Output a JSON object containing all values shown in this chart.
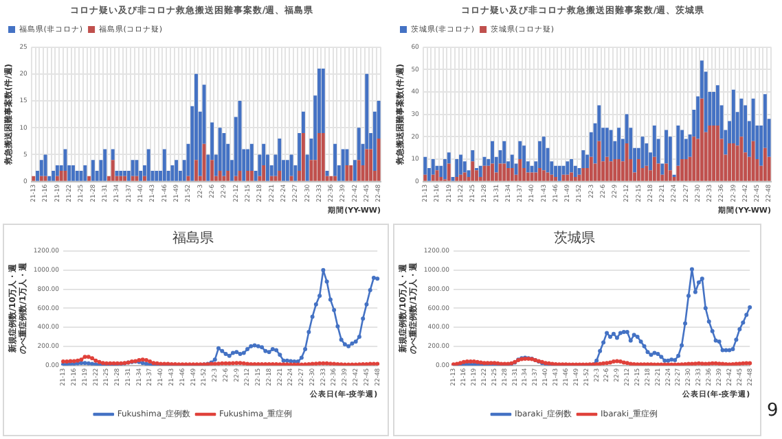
{
  "chart_data": [
    {
      "type": "bar",
      "title": "コロナ疑い及び非コロナ救急搬送困難事案数/週、福島県",
      "xlabel": "期間(YY-WW)",
      "ylabel": "救急搬送困難事案数(件/週)",
      "stacked": true,
      "legend": "top left",
      "grid": true,
      "ylim": [
        0,
        25
      ],
      "yticks": [
        0,
        5,
        10,
        15,
        20,
        25
      ],
      "categories": [
        "21-13",
        null,
        null,
        "21-16",
        null,
        null,
        "21-19",
        null,
        null,
        "21-22",
        null,
        null,
        "21-25",
        null,
        null,
        "21-28",
        null,
        null,
        "21-31",
        null,
        null,
        "21-34",
        null,
        null,
        "21-37",
        null,
        null,
        "21-40",
        null,
        null,
        "21-43",
        null,
        null,
        "21-46",
        null,
        null,
        "21-49",
        null,
        null,
        "21-52",
        null,
        null,
        "22-3",
        null,
        null,
        "22-6",
        null,
        null,
        "22-9",
        null,
        null,
        "22-12",
        null,
        null,
        "22-15",
        null,
        null,
        "22-18",
        null,
        null,
        "22-21",
        null,
        null,
        "22-24",
        null,
        null,
        "22-27",
        null,
        null,
        "22-30",
        null,
        null,
        "22-33",
        null,
        null,
        "22-36",
        null,
        null,
        "22-39",
        null,
        null,
        "22-42",
        null,
        null,
        "22-45",
        null,
        null,
        "22-48"
      ],
      "series": [
        {
          "name": "福島県(コロナ疑)",
          "color": "#c0504d",
          "values": [
            1,
            0,
            1,
            1,
            0,
            0,
            1,
            2,
            2,
            0,
            0,
            0,
            0,
            0,
            1,
            0,
            0,
            0,
            0,
            1,
            4,
            1,
            1,
            1,
            0,
            1,
            1,
            0,
            1,
            0,
            0,
            0,
            0,
            0,
            0,
            0,
            0,
            0,
            0,
            1,
            0,
            4,
            1,
            7,
            0,
            4,
            1,
            2,
            1,
            2,
            0,
            1,
            2,
            0,
            2,
            2,
            0,
            1,
            3,
            0,
            1,
            1,
            2,
            0,
            0,
            1,
            0,
            2,
            9,
            0,
            4,
            4,
            9,
            9,
            1,
            1,
            1,
            0,
            0,
            3,
            3,
            0,
            4,
            3,
            6,
            6,
            2,
            8
          ]
        },
        {
          "name": "福島県(非コロナ)",
          "color": "#4472c4",
          "values": [
            0,
            2,
            3,
            4,
            1,
            2,
            2,
            1,
            4,
            3,
            3,
            2,
            2,
            3,
            0,
            4,
            2,
            4,
            6,
            0,
            2,
            1,
            1,
            1,
            2,
            3,
            3,
            2,
            2,
            6,
            2,
            2,
            2,
            6,
            2,
            3,
            4,
            2,
            4,
            6,
            14,
            16,
            12,
            11,
            5,
            7,
            4,
            8,
            8,
            5,
            4,
            11,
            13,
            6,
            4,
            5,
            2,
            4,
            4,
            5,
            2,
            4,
            6,
            4,
            4,
            4,
            3,
            7,
            4,
            5,
            4,
            12,
            12,
            12,
            1,
            0,
            6,
            3,
            6,
            3,
            0,
            4,
            6,
            4,
            14,
            3,
            11,
            7
          ]
        }
      ]
    },
    {
      "type": "bar",
      "title": "コロナ疑い及び非コロナ救急搬送困難事案数/週、茨城県",
      "xlabel": "期間(YY-WW)",
      "ylabel": "救急搬送困難事案数(件/週)",
      "stacked": true,
      "legend": "top left",
      "grid": true,
      "ylim": [
        0,
        60
      ],
      "yticks": [
        0,
        10,
        20,
        30,
        40,
        50,
        60
      ],
      "categories": [
        "21-13",
        null,
        null,
        "21-16",
        null,
        null,
        "21-19",
        null,
        null,
        "21-22",
        null,
        null,
        "21-25",
        null,
        null,
        "21-28",
        null,
        null,
        "21-31",
        null,
        null,
        "21-34",
        null,
        null,
        "21-37",
        null,
        null,
        "21-40",
        null,
        null,
        "21-43",
        null,
        null,
        "21-46",
        null,
        null,
        "21-49",
        null,
        null,
        "21-52",
        null,
        null,
        "22-3",
        null,
        null,
        "22-6",
        null,
        null,
        "22-9",
        null,
        null,
        "22-12",
        null,
        null,
        "22-15",
        null,
        null,
        "22-18",
        null,
        null,
        "22-21",
        null,
        null,
        "22-24",
        null,
        null,
        "22-27",
        null,
        null,
        "22-30",
        null,
        null,
        "22-33",
        null,
        null,
        "22-36",
        null,
        null,
        "22-39",
        null,
        null,
        "22-42",
        null,
        null,
        "22-45",
        null,
        null,
        "22-48"
      ],
      "series": [
        {
          "name": "茨城県(コロナ疑)",
          "color": "#c0504d",
          "values": [
            3,
            0,
            3,
            5,
            2,
            1,
            8,
            0,
            2,
            3,
            4,
            2,
            9,
            5,
            2,
            7,
            7,
            8,
            4,
            8,
            8,
            6,
            6,
            3,
            10,
            6,
            4,
            4,
            4,
            6,
            5,
            4,
            3,
            2,
            0,
            3,
            3,
            4,
            2,
            3,
            6,
            6,
            11,
            8,
            18,
            9,
            11,
            9,
            10,
            10,
            9,
            17,
            10,
            4,
            10,
            6,
            7,
            5,
            11,
            8,
            3,
            8,
            5,
            2,
            7,
            10,
            10,
            11,
            20,
            19,
            37,
            22,
            25,
            25,
            25,
            19,
            12,
            17,
            17,
            16,
            20,
            13,
            11,
            18,
            10,
            7,
            15,
            11
          ]
        },
        {
          "name": "茨城県(非コロナ)",
          "color": "#4472c4",
          "values": [
            8,
            6,
            7,
            2,
            5,
            9,
            5,
            2,
            8,
            9,
            5,
            3,
            5,
            1,
            5,
            4,
            3,
            10,
            7,
            6,
            10,
            3,
            6,
            5,
            8,
            10,
            5,
            3,
            5,
            12,
            15,
            11,
            6,
            5,
            7,
            4,
            6,
            6,
            5,
            3,
            8,
            6,
            11,
            18,
            16,
            15,
            13,
            14,
            8,
            14,
            10,
            13,
            14,
            11,
            5,
            14,
            10,
            8,
            14,
            11,
            5,
            15,
            15,
            1,
            18,
            13,
            9,
            10,
            12,
            19,
            17,
            27,
            15,
            15,
            18,
            15,
            11,
            10,
            24,
            15,
            17,
            21,
            16,
            19,
            15,
            18,
            24,
            17
          ]
        }
      ]
    },
    {
      "type": "line",
      "title": "福島県",
      "xlabel": "公表日(年-疫学週)",
      "ylabel": "新規症例数/10万人・週のべ重症例数/1万人・週",
      "legend": "bottom",
      "grid": "y",
      "marker": "circle",
      "line_style": "solid",
      "ylim": [
        0,
        1200
      ],
      "yticks": [
        {
          "value": 0,
          "label": "0.00"
        },
        {
          "value": 200,
          "label": "200.00"
        },
        {
          "value": 400,
          "label": "400.00"
        },
        {
          "value": 600,
          "label": "600.00"
        },
        {
          "value": 800,
          "label": "800.00"
        },
        {
          "value": 1000,
          "label": "1000.00"
        },
        {
          "value": 1200,
          "label": "1200.00"
        }
      ],
      "categories": [
        "21-13",
        null,
        null,
        "21-16",
        null,
        null,
        "21-19",
        null,
        null,
        "21-22",
        null,
        null,
        "21-25",
        null,
        null,
        "21-28",
        null,
        null,
        "21-31",
        null,
        null,
        "21-34",
        null,
        null,
        "21-37",
        null,
        null,
        "21-40",
        null,
        null,
        "21-43",
        null,
        null,
        "21-46",
        null,
        null,
        "21-49",
        null,
        null,
        "21-52",
        null,
        null,
        "22-3",
        null,
        null,
        "22-6",
        null,
        null,
        "22-9",
        null,
        null,
        "22-12",
        null,
        null,
        "22-15",
        null,
        null,
        "22-18",
        null,
        null,
        "22-21",
        null,
        null,
        "22-24",
        null,
        null,
        "22-27",
        null,
        null,
        "22-30",
        null,
        null,
        "22-33",
        null,
        null,
        "22-36",
        null,
        null,
        "22-39",
        null,
        null,
        "22-42",
        null,
        null,
        "22-45",
        null,
        null,
        "22-48"
      ],
      "series": [
        {
          "name": "Fukushima_症例数",
          "color": "#4472c4",
          "values": [
            10,
            10,
            15,
            15,
            20,
            25,
            25,
            20,
            15,
            10,
            5,
            5,
            5,
            5,
            5,
            10,
            15,
            20,
            30,
            35,
            40,
            35,
            25,
            15,
            10,
            5,
            5,
            5,
            5,
            5,
            5,
            5,
            5,
            5,
            5,
            5,
            5,
            5,
            5,
            10,
            15,
            30,
            60,
            180,
            150,
            120,
            100,
            130,
            140,
            120,
            130,
            170,
            200,
            210,
            200,
            190,
            150,
            140,
            170,
            160,
            110,
            50,
            50,
            45,
            40,
            40,
            80,
            170,
            350,
            510,
            640,
            730,
            1000,
            880,
            690,
            580,
            410,
            270,
            220,
            200,
            230,
            250,
            300,
            490,
            640,
            790,
            920,
            910
          ]
        },
        {
          "name": "Fukushima_重症例",
          "color": "#e0413a",
          "values": [
            40,
            40,
            45,
            45,
            50,
            60,
            90,
            90,
            75,
            50,
            35,
            25,
            20,
            20,
            20,
            20,
            20,
            25,
            30,
            40,
            45,
            55,
            60,
            55,
            40,
            25,
            20,
            15,
            15,
            15,
            12,
            12,
            10,
            10,
            10,
            10,
            10,
            10,
            10,
            10,
            12,
            15,
            15,
            18,
            20,
            20,
            20,
            22,
            25,
            25,
            20,
            15,
            12,
            12,
            12,
            12,
            12,
            12,
            12,
            12,
            10,
            10,
            10,
            8,
            8,
            8,
            8,
            10,
            12,
            15,
            18,
            20,
            20,
            20,
            18,
            15,
            12,
            10,
            8,
            8,
            8,
            8,
            10,
            12,
            12,
            15,
            15,
            15
          ]
        }
      ]
    },
    {
      "type": "line",
      "title": "茨城県",
      "xlabel": "公表日(年-疫学週)",
      "ylabel": "新規症例数/10万人・週のべ重症例数/1万人・週",
      "legend": "bottom",
      "grid": "y",
      "marker": "circle",
      "line_style": "solid",
      "ylim": [
        0,
        1200
      ],
      "yticks": [
        {
          "value": 0,
          "label": "0.00"
        },
        {
          "value": 200,
          "label": "200.00"
        },
        {
          "value": 400,
          "label": "400.00"
        },
        {
          "value": 600,
          "label": "600.00"
        },
        {
          "value": 800,
          "label": "800.00"
        },
        {
          "value": 1000,
          "label": "1000.00"
        },
        {
          "value": 1200,
          "label": "1200.00"
        }
      ],
      "categories": [
        "21-13",
        null,
        null,
        "21-16",
        null,
        null,
        "21-19",
        null,
        null,
        "21-22",
        null,
        null,
        "21-25",
        null,
        null,
        "21-28",
        null,
        null,
        "21-31",
        null,
        null,
        "21-34",
        null,
        null,
        "21-37",
        null,
        null,
        "21-40",
        null,
        null,
        "21-43",
        null,
        null,
        "21-46",
        null,
        null,
        "21-49",
        null,
        null,
        "21-52",
        null,
        null,
        "22-3",
        null,
        null,
        "22-6",
        null,
        null,
        "22-9",
        null,
        null,
        "22-12",
        null,
        null,
        "22-15",
        null,
        null,
        "22-18",
        null,
        null,
        "22-21",
        null,
        null,
        "22-24",
        null,
        null,
        "22-27",
        null,
        null,
        "22-30",
        null,
        null,
        "22-33",
        null,
        null,
        "22-36",
        null,
        null,
        "22-39",
        null,
        null,
        "22-42",
        null,
        null,
        "22-45",
        null,
        null,
        "22-48"
      ],
      "annotations": [
        "9"
      ],
      "series": [
        {
          "name": "Ibaraki_症例数",
          "color": "#4472c4",
          "values": [
            5,
            5,
            8,
            10,
            10,
            10,
            8,
            8,
            8,
            8,
            10,
            10,
            10,
            8,
            8,
            8,
            10,
            15,
            30,
            60,
            75,
            80,
            75,
            70,
            55,
            40,
            25,
            15,
            10,
            8,
            5,
            5,
            5,
            5,
            5,
            5,
            5,
            5,
            5,
            5,
            5,
            8,
            50,
            150,
            240,
            340,
            300,
            330,
            290,
            340,
            350,
            350,
            260,
            320,
            300,
            250,
            200,
            140,
            110,
            130,
            120,
            90,
            50,
            50,
            60,
            55,
            100,
            210,
            440,
            730,
            1010,
            770,
            870,
            910,
            600,
            460,
            360,
            260,
            250,
            160,
            160,
            160,
            170,
            270,
            380,
            450,
            530,
            610
          ]
        },
        {
          "name": "Ibaraki_重症例",
          "color": "#e0413a",
          "values": [
            10,
            15,
            25,
            35,
            40,
            40,
            40,
            35,
            30,
            25,
            25,
            25,
            25,
            20,
            15,
            15,
            15,
            20,
            35,
            55,
            65,
            70,
            70,
            65,
            55,
            45,
            35,
            25,
            20,
            15,
            12,
            10,
            10,
            10,
            8,
            8,
            8,
            8,
            8,
            8,
            10,
            10,
            12,
            15,
            20,
            25,
            30,
            40,
            45,
            40,
            30,
            25,
            15,
            12,
            10,
            10,
            10,
            10,
            10,
            8,
            8,
            8,
            8,
            8,
            8,
            8,
            8,
            10,
            12,
            15,
            15,
            18,
            20,
            18,
            15,
            18,
            20,
            20,
            18,
            15,
            12,
            10,
            12,
            15,
            18,
            20,
            22,
            22
          ]
        }
      ]
    }
  ]
}
